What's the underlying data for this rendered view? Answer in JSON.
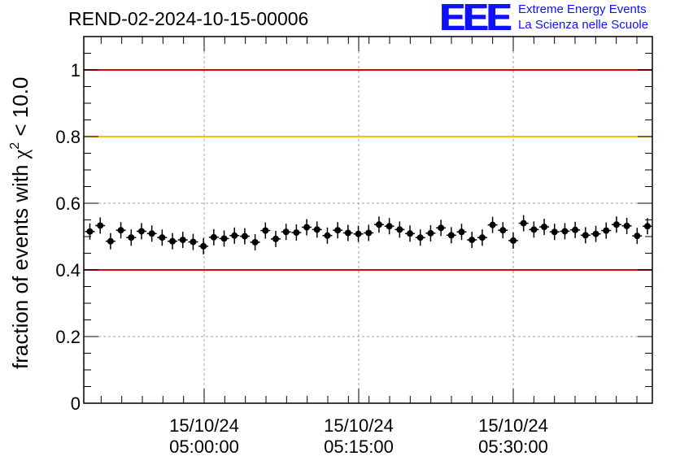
{
  "title": "REND-02-2024-10-15-00006",
  "logo": {
    "mark": "EEE",
    "line1": "Extreme Energy Events",
    "line2": "La Scienza nelle Scuole"
  },
  "chart_data": {
    "type": "scatter",
    "ylabel_main": "fraction of events with ",
    "ylabel_symbol": "χ",
    "ylabel_sup": "2",
    "ylabel_tail": " < 10.0",
    "ylim": [
      0,
      1.1
    ],
    "y_ticks": [
      0,
      0.2,
      0.4,
      0.6,
      0.8,
      1
    ],
    "y_tick_labels": [
      "0",
      "0.2",
      "0.4",
      "0.6",
      "0.8",
      "1"
    ],
    "x_ticks": [
      {
        "date": "15/10/24",
        "time": "05:00:00"
      },
      {
        "date": "15/10/24",
        "time": "05:15:00"
      },
      {
        "date": "15/10/24",
        "time": "05:30:00"
      }
    ],
    "grid": true,
    "reference_lines": [
      {
        "y": 1.0,
        "color": "#e00000"
      },
      {
        "y": 0.8,
        "color": "#ffc000"
      },
      {
        "y": 0.4,
        "color": "#e00000"
      }
    ],
    "marker_color": "#000000",
    "series": [
      {
        "values": [
          0.515,
          0.533,
          0.486,
          0.519,
          0.497,
          0.516,
          0.509,
          0.497,
          0.486,
          0.49,
          0.484,
          0.471,
          0.498,
          0.494,
          0.503,
          0.501,
          0.483,
          0.518,
          0.493,
          0.514,
          0.512,
          0.528,
          0.521,
          0.503,
          0.519,
          0.511,
          0.508,
          0.511,
          0.536,
          0.531,
          0.521,
          0.509,
          0.497,
          0.51,
          0.526,
          0.504,
          0.514,
          0.49,
          0.497,
          0.535,
          0.519,
          0.488,
          0.54,
          0.521,
          0.529,
          0.514,
          0.516,
          0.52,
          0.504,
          0.508,
          0.518,
          0.536,
          0.532,
          0.502,
          0.531
        ]
      }
    ]
  }
}
